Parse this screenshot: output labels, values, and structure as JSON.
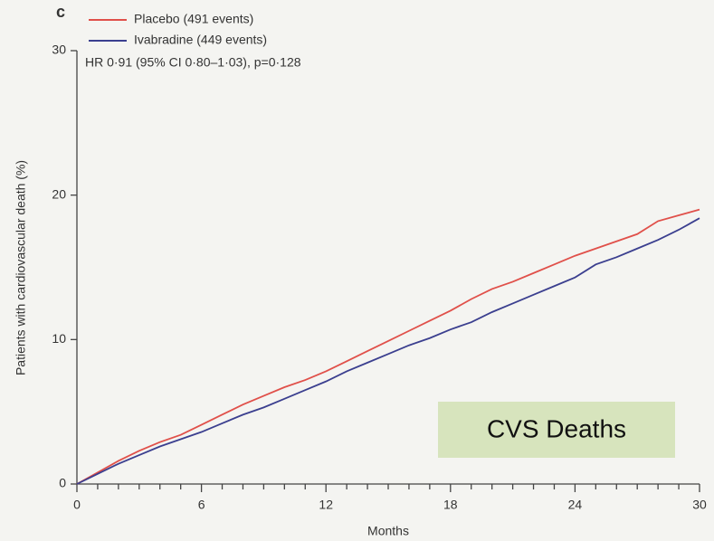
{
  "chart_data": {
    "type": "line",
    "panel_label": "c",
    "annotation": "HR 0·91 (95% CI 0·80–1·03), p=0·128",
    "xlabel": "Months",
    "ylabel": "Patients with cardiovascular death (%)",
    "callout": "CVS Deaths",
    "x": [
      0,
      1,
      2,
      3,
      4,
      5,
      6,
      7,
      8,
      9,
      10,
      11,
      12,
      13,
      14,
      15,
      16,
      17,
      18,
      19,
      20,
      21,
      22,
      23,
      24,
      25,
      26,
      27,
      28,
      29,
      30
    ],
    "series": [
      {
        "name": "Placebo (491 events)",
        "color": "#e0504a",
        "values": [
          0,
          0.8,
          1.6,
          2.3,
          2.9,
          3.4,
          4.1,
          4.8,
          5.5,
          6.1,
          6.7,
          7.2,
          7.8,
          8.5,
          9.2,
          9.9,
          10.6,
          11.3,
          12.0,
          12.8,
          13.5,
          14.0,
          14.6,
          15.2,
          15.8,
          16.3,
          16.8,
          17.3,
          18.2,
          18.6,
          19.0
        ]
      },
      {
        "name": "Ivabradine (449 events)",
        "color": "#3b3f8f",
        "values": [
          0,
          0.7,
          1.4,
          2.0,
          2.6,
          3.1,
          3.6,
          4.2,
          4.8,
          5.3,
          5.9,
          6.5,
          7.1,
          7.8,
          8.4,
          9.0,
          9.6,
          10.1,
          10.7,
          11.2,
          11.9,
          12.5,
          13.1,
          13.7,
          14.3,
          15.2,
          15.7,
          16.3,
          16.9,
          17.6,
          18.4
        ]
      }
    ],
    "xlim": [
      0,
      30
    ],
    "xticks": [
      0,
      6,
      12,
      18,
      24,
      30
    ],
    "xminorticks": [
      1,
      2,
      3,
      4,
      5,
      7,
      8,
      9,
      10,
      11,
      13,
      14,
      15,
      16,
      17,
      19,
      20,
      21,
      22,
      23,
      25,
      26,
      27,
      28,
      29
    ],
    "ylim": [
      0,
      30
    ],
    "yticks": [
      0,
      10,
      20,
      30
    ],
    "legend": "upper left"
  }
}
